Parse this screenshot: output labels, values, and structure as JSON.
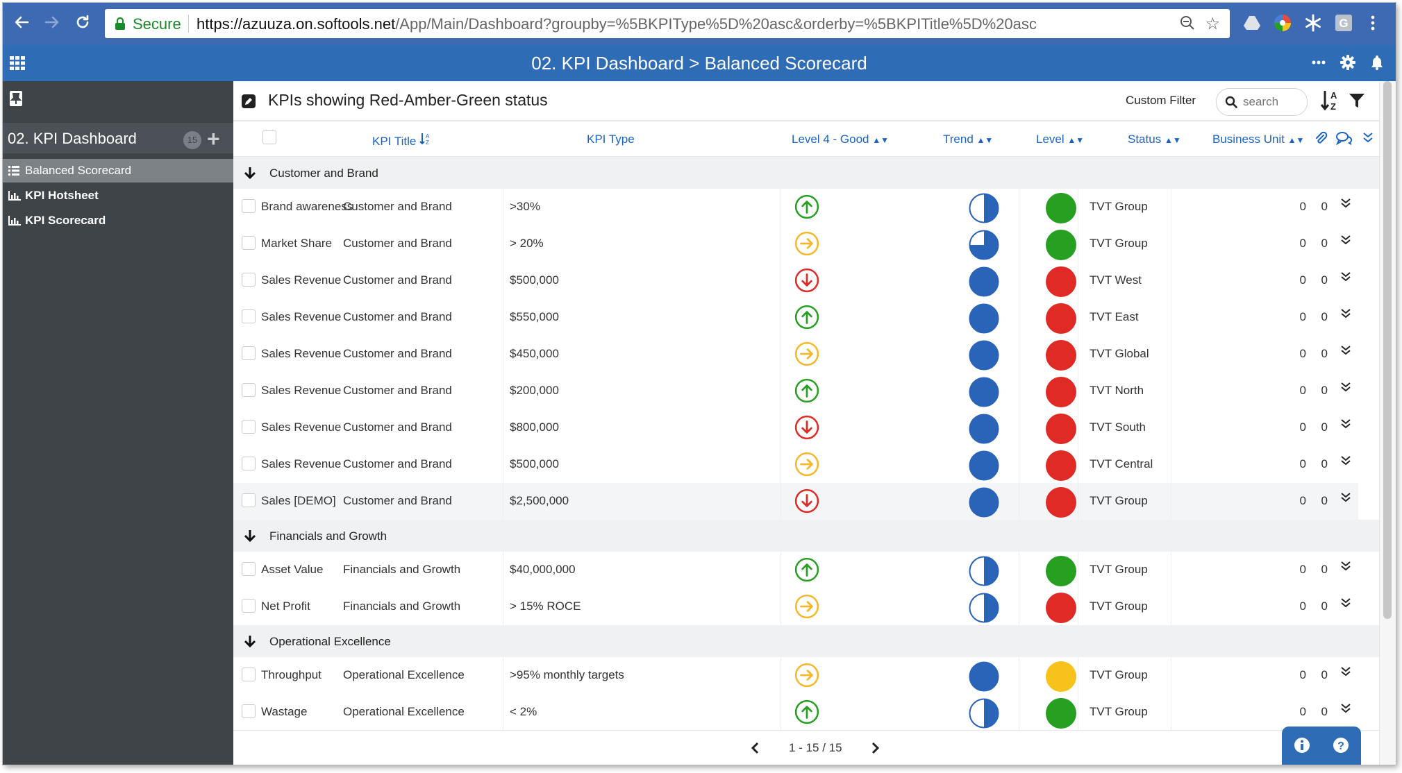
{
  "browser": {
    "secure_label": "Secure",
    "url_host": "https://azuuza.on.softools.net",
    "url_path": "/App/Main/Dashboard?groupby=%5BKPIType%5D%20asc&orderby=%5BKPITitle%5D%20asc"
  },
  "app": {
    "title": "02. KPI Dashboard > Balanced Scorecard",
    "header_icons": [
      "more-icon",
      "gear-icon",
      "bell-icon"
    ]
  },
  "sidebar": {
    "dashboard_label": "02. KPI Dashboard",
    "badge": "15",
    "items": [
      {
        "label": "Balanced Scorecard",
        "icon": "list-icon",
        "active": true
      },
      {
        "label": "KPI Hotsheet",
        "icon": "bar-chart-icon",
        "active": false
      },
      {
        "label": "KPI Scorecard",
        "icon": "bar-chart-icon",
        "active": false
      }
    ]
  },
  "toolbar": {
    "view_title": "KPIs showing Red-Amber-Green status",
    "custom_filter": "Custom Filter",
    "search_placeholder": "search"
  },
  "columns": {
    "kpi_title": "KPI Title",
    "kpi_type": "KPI Type",
    "level4": "Level 4 - Good",
    "trend": "Trend",
    "level": "Level",
    "status": "Status",
    "business_unit": "Business Unit"
  },
  "colors": {
    "green": "#27a022",
    "amber": "#f6b82a",
    "red": "#e02a26",
    "yellow": "#f7c21c",
    "blue": "#2a64b8",
    "header_blue": "#2e6db5"
  },
  "groups": [
    {
      "label": "Customer and Brand",
      "rows": [
        {
          "title": "Brand awareness",
          "type": "Customer and Brand",
          "good": ">30%",
          "direction": "up",
          "trend_fill": 0.5,
          "level": "green",
          "status": "TVT Group",
          "attachments": "0",
          "comments": "0"
        },
        {
          "title": "Market Share",
          "type": "Customer and Brand",
          "good": "> 20%",
          "direction": "right",
          "trend_fill": 0.75,
          "level": "green",
          "status": "TVT Group",
          "attachments": "0",
          "comments": "0"
        },
        {
          "title": "Sales Revenue",
          "type": "Customer and Brand",
          "good": "$500,000",
          "direction": "down",
          "trend_fill": 1,
          "level": "red",
          "status": "TVT West",
          "attachments": "0",
          "comments": "0"
        },
        {
          "title": "Sales Revenue",
          "type": "Customer and Brand",
          "good": "$550,000",
          "direction": "up",
          "trend_fill": 1,
          "level": "red",
          "status": "TVT East",
          "attachments": "0",
          "comments": "0"
        },
        {
          "title": "Sales Revenue",
          "type": "Customer and Brand",
          "good": "$450,000",
          "direction": "right",
          "trend_fill": 1,
          "level": "red",
          "status": "TVT Global",
          "attachments": "0",
          "comments": "0"
        },
        {
          "title": "Sales Revenue",
          "type": "Customer and Brand",
          "good": "$200,000",
          "direction": "up",
          "trend_fill": 1,
          "level": "red",
          "status": "TVT North",
          "attachments": "0",
          "comments": "0"
        },
        {
          "title": "Sales Revenue",
          "type": "Customer and Brand",
          "good": "$800,000",
          "direction": "down",
          "trend_fill": 1,
          "level": "red",
          "status": "TVT South",
          "attachments": "0",
          "comments": "0"
        },
        {
          "title": "Sales Revenue",
          "type": "Customer and Brand",
          "good": "$500,000",
          "direction": "right",
          "trend_fill": 1,
          "level": "red",
          "status": "TVT Central",
          "attachments": "0",
          "comments": "0"
        },
        {
          "title": "Sales [DEMO]",
          "type": "Customer and Brand",
          "good": "$2,500,000",
          "direction": "down",
          "trend_fill": 1,
          "level": "red",
          "status": "TVT Group",
          "attachments": "0",
          "comments": "0",
          "highlight": true
        }
      ]
    },
    {
      "label": "Financials and Growth",
      "rows": [
        {
          "title": "Asset Value",
          "type": "Financials and Growth",
          "good": "$40,000,000",
          "direction": "up",
          "trend_fill": 0.5,
          "level": "green",
          "status": "TVT Group",
          "attachments": "0",
          "comments": "0"
        },
        {
          "title": "Net Profit",
          "type": "Financials and Growth",
          "good": "> 15% ROCE",
          "direction": "right",
          "trend_fill": 0.5,
          "level": "red",
          "status": "TVT Group",
          "attachments": "0",
          "comments": "0"
        }
      ]
    },
    {
      "label": "Operational Excellence",
      "rows": [
        {
          "title": "Throughput",
          "type": "Operational Excellence",
          "good": ">95% monthly targets",
          "direction": "right",
          "trend_fill": 1,
          "level": "yellow",
          "status": "TVT Group",
          "attachments": "0",
          "comments": "0"
        },
        {
          "title": "Wastage",
          "type": "Operational Excellence",
          "good": "< 2%",
          "direction": "up",
          "trend_fill": 0.5,
          "level": "green",
          "status": "TVT Group",
          "attachments": "0",
          "comments": "0"
        }
      ]
    }
  ],
  "pagination": {
    "info": "1 - 15 / 15"
  }
}
